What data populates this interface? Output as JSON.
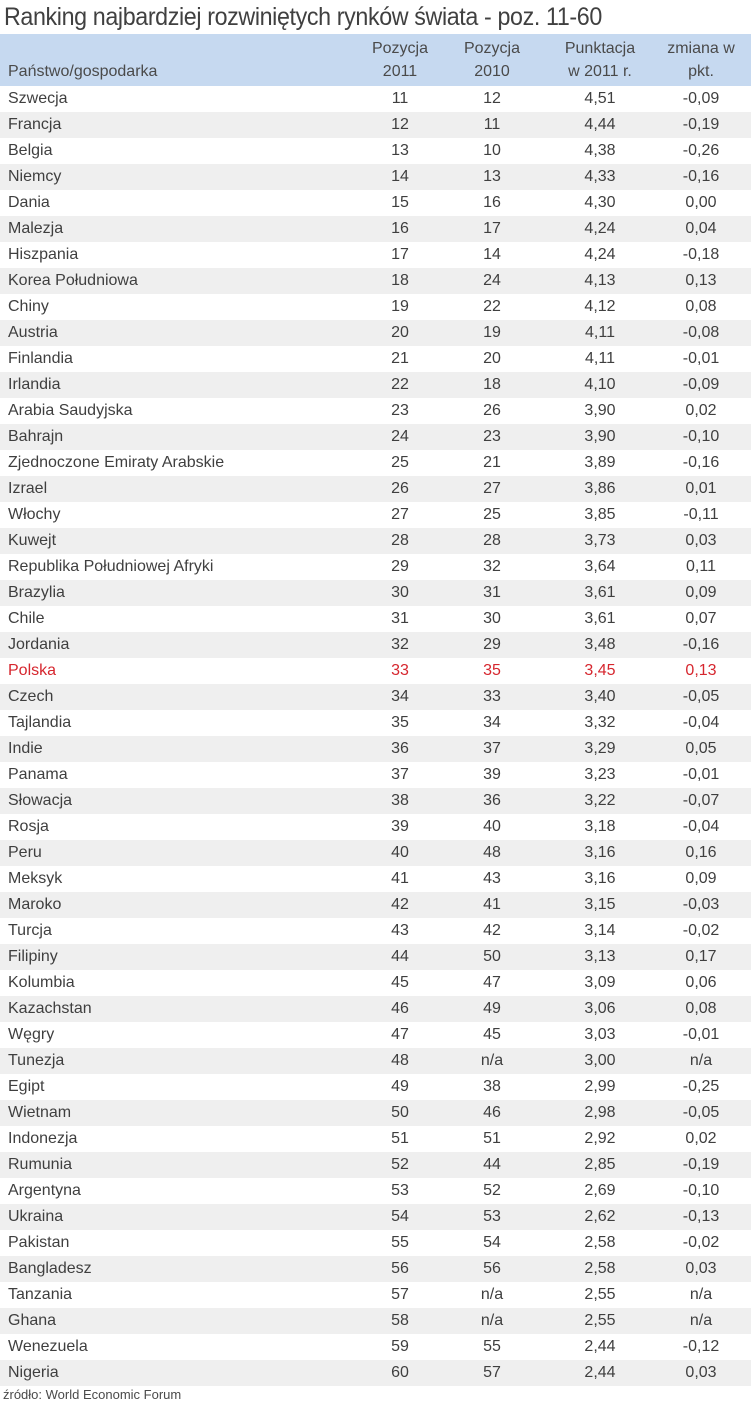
{
  "title": "Ranking najbardziej rozwiniętych rynków świata - poz. 11-60",
  "colors": {
    "header_bg": "#c6d9f0",
    "row_alt_bg": "#efefef",
    "text": "#3f3f3f",
    "highlight": "#d6262e"
  },
  "table": {
    "headers": {
      "country": "Państwo/gospodarka",
      "pos2011": [
        "Pozycja",
        "2011"
      ],
      "pos2010": [
        "Pozycja",
        "2010"
      ],
      "score": [
        "Punktacja",
        "w 2011 r."
      ],
      "change": [
        "zmiana w",
        "pkt."
      ]
    },
    "rows": [
      {
        "country": "Szwecja",
        "pos2011": "11",
        "pos2010": "12",
        "score": "4,51",
        "change": "-0,09"
      },
      {
        "country": "Francja",
        "pos2011": "12",
        "pos2010": "11",
        "score": "4,44",
        "change": "-0,19"
      },
      {
        "country": "Belgia",
        "pos2011": "13",
        "pos2010": "10",
        "score": "4,38",
        "change": "-0,26"
      },
      {
        "country": "Niemcy",
        "pos2011": "14",
        "pos2010": "13",
        "score": "4,33",
        "change": "-0,16"
      },
      {
        "country": "Dania",
        "pos2011": "15",
        "pos2010": "16",
        "score": "4,30",
        "change": "0,00"
      },
      {
        "country": "Malezja",
        "pos2011": "16",
        "pos2010": "17",
        "score": "4,24",
        "change": "0,04"
      },
      {
        "country": "Hiszpania",
        "pos2011": "17",
        "pos2010": "14",
        "score": "4,24",
        "change": "-0,18"
      },
      {
        "country": "Korea Południowa",
        "pos2011": "18",
        "pos2010": "24",
        "score": "4,13",
        "change": "0,13"
      },
      {
        "country": "Chiny",
        "pos2011": "19",
        "pos2010": "22",
        "score": "4,12",
        "change": "0,08"
      },
      {
        "country": "Austria",
        "pos2011": "20",
        "pos2010": "19",
        "score": "4,11",
        "change": "-0,08"
      },
      {
        "country": "Finlandia",
        "pos2011": "21",
        "pos2010": "20",
        "score": "4,11",
        "change": "-0,01"
      },
      {
        "country": "Irlandia",
        "pos2011": "22",
        "pos2010": "18",
        "score": "4,10",
        "change": "-0,09"
      },
      {
        "country": "Arabia Saudyjska",
        "pos2011": "23",
        "pos2010": "26",
        "score": "3,90",
        "change": "0,02"
      },
      {
        "country": "Bahrajn",
        "pos2011": "24",
        "pos2010": "23",
        "score": "3,90",
        "change": "-0,10"
      },
      {
        "country": "Zjednoczone Emiraty Arabskie",
        "pos2011": "25",
        "pos2010": "21",
        "score": "3,89",
        "change": "-0,16"
      },
      {
        "country": "Izrael",
        "pos2011": "26",
        "pos2010": "27",
        "score": "3,86",
        "change": "0,01"
      },
      {
        "country": "Włochy",
        "pos2011": "27",
        "pos2010": "25",
        "score": "3,85",
        "change": "-0,11"
      },
      {
        "country": "Kuwejt",
        "pos2011": "28",
        "pos2010": "28",
        "score": "3,73",
        "change": "0,03"
      },
      {
        "country": "Republika Południowej Afryki",
        "pos2011": "29",
        "pos2010": "32",
        "score": "3,64",
        "change": "0,11"
      },
      {
        "country": "Brazylia",
        "pos2011": "30",
        "pos2010": "31",
        "score": "3,61",
        "change": "0,09"
      },
      {
        "country": "Chile",
        "pos2011": "31",
        "pos2010": "30",
        "score": "3,61",
        "change": "0,07"
      },
      {
        "country": "Jordania",
        "pos2011": "32",
        "pos2010": "29",
        "score": "3,48",
        "change": "-0,16"
      },
      {
        "country": "Polska",
        "pos2011": "33",
        "pos2010": "35",
        "score": "3,45",
        "change": "0,13",
        "highlight": true
      },
      {
        "country": "Czech",
        "pos2011": "34",
        "pos2010": "33",
        "score": "3,40",
        "change": "-0,05"
      },
      {
        "country": "Tajlandia",
        "pos2011": "35",
        "pos2010": "34",
        "score": "3,32",
        "change": "-0,04"
      },
      {
        "country": "Indie",
        "pos2011": "36",
        "pos2010": "37",
        "score": "3,29",
        "change": "0,05"
      },
      {
        "country": "Panama",
        "pos2011": "37",
        "pos2010": "39",
        "score": "3,23",
        "change": "-0,01"
      },
      {
        "country": "Słowacja",
        "pos2011": "38",
        "pos2010": "36",
        "score": "3,22",
        "change": "-0,07"
      },
      {
        "country": "Rosja",
        "pos2011": "39",
        "pos2010": "40",
        "score": "3,18",
        "change": "-0,04"
      },
      {
        "country": "Peru",
        "pos2011": "40",
        "pos2010": "48",
        "score": "3,16",
        "change": "0,16"
      },
      {
        "country": "Meksyk",
        "pos2011": "41",
        "pos2010": "43",
        "score": "3,16",
        "change": "0,09"
      },
      {
        "country": "Maroko",
        "pos2011": "42",
        "pos2010": "41",
        "score": "3,15",
        "change": "-0,03"
      },
      {
        "country": "Turcja",
        "pos2011": "43",
        "pos2010": "42",
        "score": "3,14",
        "change": "-0,02"
      },
      {
        "country": "Filipiny",
        "pos2011": "44",
        "pos2010": "50",
        "score": "3,13",
        "change": "0,17"
      },
      {
        "country": "Kolumbia",
        "pos2011": "45",
        "pos2010": "47",
        "score": "3,09",
        "change": "0,06"
      },
      {
        "country": "Kazachstan",
        "pos2011": "46",
        "pos2010": "49",
        "score": "3,06",
        "change": "0,08"
      },
      {
        "country": "Węgry",
        "pos2011": "47",
        "pos2010": "45",
        "score": "3,03",
        "change": "-0,01"
      },
      {
        "country": "Tunezja",
        "pos2011": "48",
        "pos2010": "n/a",
        "score": "3,00",
        "change": "n/a"
      },
      {
        "country": "Egipt",
        "pos2011": "49",
        "pos2010": "38",
        "score": "2,99",
        "change": "-0,25"
      },
      {
        "country": "Wietnam",
        "pos2011": "50",
        "pos2010": "46",
        "score": "2,98",
        "change": "-0,05"
      },
      {
        "country": "Indonezja",
        "pos2011": "51",
        "pos2010": "51",
        "score": "2,92",
        "change": "0,02"
      },
      {
        "country": "Rumunia",
        "pos2011": "52",
        "pos2010": "44",
        "score": "2,85",
        "change": "-0,19"
      },
      {
        "country": "Argentyna",
        "pos2011": "53",
        "pos2010": "52",
        "score": "2,69",
        "change": "-0,10"
      },
      {
        "country": "Ukraina",
        "pos2011": "54",
        "pos2010": "53",
        "score": "2,62",
        "change": "-0,13"
      },
      {
        "country": "Pakistan",
        "pos2011": "55",
        "pos2010": "54",
        "score": "2,58",
        "change": "-0,02"
      },
      {
        "country": "Bangladesz",
        "pos2011": "56",
        "pos2010": "56",
        "score": "2,58",
        "change": "0,03"
      },
      {
        "country": "Tanzania",
        "pos2011": "57",
        "pos2010": "n/a",
        "score": "2,55",
        "change": "n/a"
      },
      {
        "country": "Ghana",
        "pos2011": "58",
        "pos2010": "n/a",
        "score": "2,55",
        "change": "n/a"
      },
      {
        "country": "Wenezuela",
        "pos2011": "59",
        "pos2010": "55",
        "score": "2,44",
        "change": "-0,12"
      },
      {
        "country": "Nigeria",
        "pos2011": "60",
        "pos2010": "57",
        "score": "2,44",
        "change": "0,03"
      }
    ]
  },
  "source": "źródło: World Economic Forum"
}
